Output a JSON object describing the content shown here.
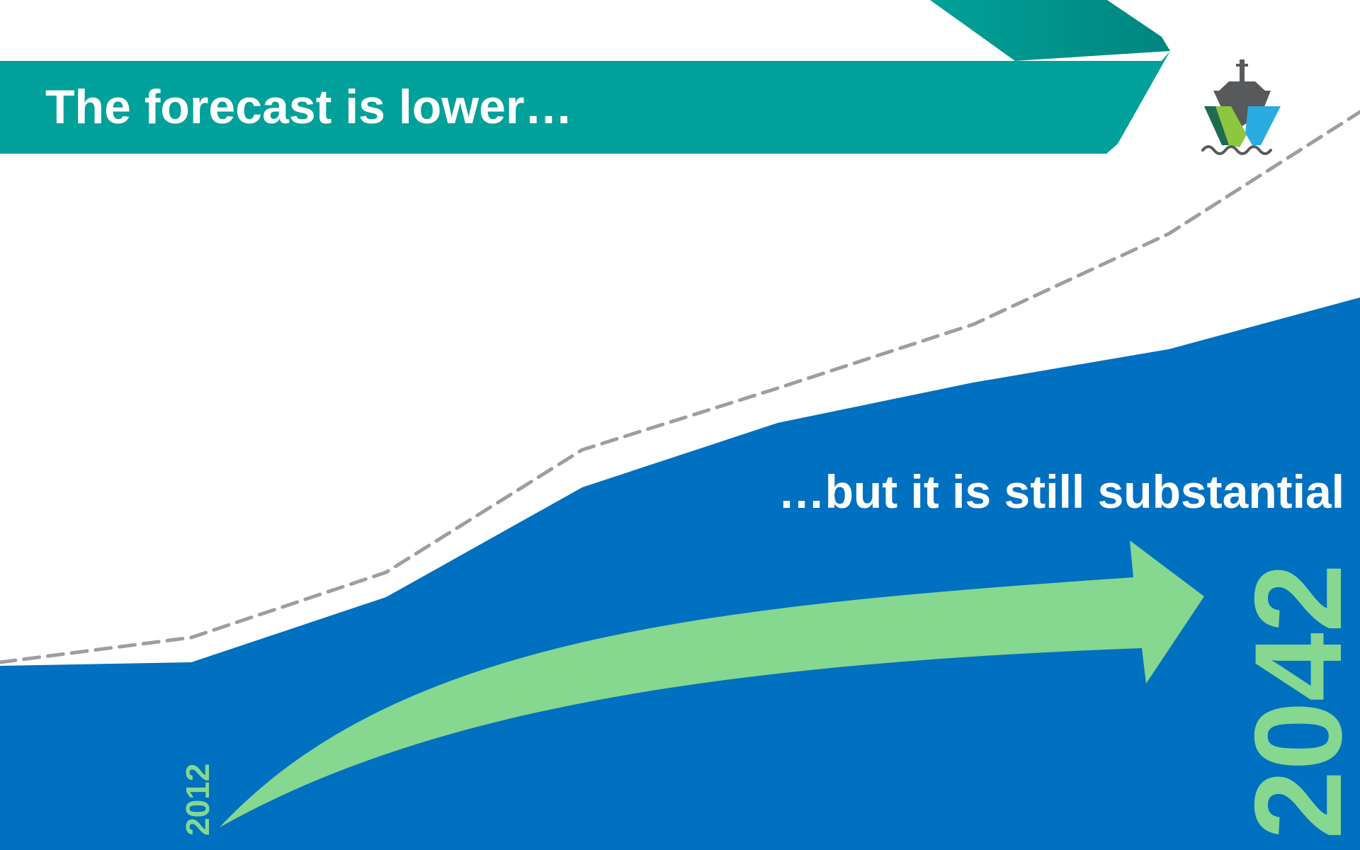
{
  "slide": {
    "title": "The forecast is lower…",
    "subtitle": "…but it is still substantial",
    "start_year": "2012",
    "end_year": "2042"
  },
  "colors": {
    "banner": "#00A19A",
    "banner_dark": "#008C84",
    "area_fill": "#0070C0",
    "arrow": "#86D78F",
    "dashed_line": "#9E9E9E",
    "text_light": "#FFFFFF",
    "logo_green": "#8DC63F",
    "logo_blue": "#29ABE2",
    "logo_dark": "#1E6B52",
    "logo_gray": "#58595B"
  },
  "icons": {
    "logo": "ship-logo-icon",
    "arrow": "growth-arrow-icon"
  }
}
